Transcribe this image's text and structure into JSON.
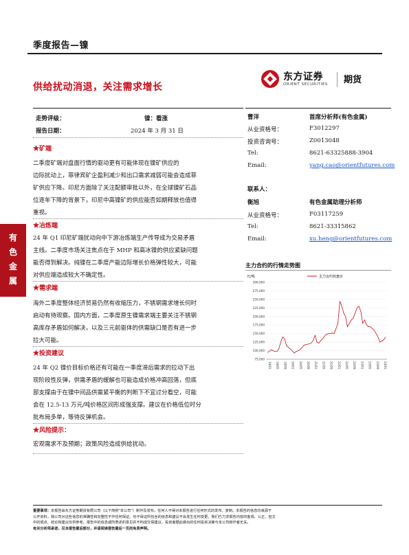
{
  "header": {
    "report_type": "季度报告—镍",
    "headline": "供给扰动消退，关注需求增长"
  },
  "logo": {
    "name_cn": "东方证券",
    "name_en": "ORIENT SECURITIES",
    "sub": "期货"
  },
  "side_tab": [
    "有",
    "色",
    "金",
    "属"
  ],
  "meta": {
    "trend_label": "走势评级：",
    "trend_value": "镍：看涨",
    "date_label": "报告日期：",
    "date_value": "2024 年 3 月 31 日"
  },
  "analysts": [
    {
      "name": "曹洋",
      "title": "首席分析师(有色金属)",
      "rows": [
        {
          "label": "从业资格号：",
          "value": "F3012297"
        },
        {
          "label": "投资咨询号：",
          "value": "Z0013048"
        },
        {
          "label": "Tel:",
          "value": "8621-63325888-3904"
        },
        {
          "label": "Email:",
          "value": "yang.cao@orientfutures.com",
          "link": true
        }
      ]
    },
    {
      "contact_label": "联系人：",
      "name": "衡旭",
      "title": "有色金属助理分析师",
      "rows": [
        {
          "label": "从业资格号：",
          "value": "F03117259"
        },
        {
          "label": "Tel:",
          "value": "8621-33315862"
        },
        {
          "label": "Email:",
          "value": "xu.heng@orientfutures.com",
          "link": true
        }
      ]
    }
  ],
  "sections": [
    {
      "title": "★矿端",
      "lines": [
        "二季度矿端对盘面行情的驱动更有可能体现在镍矿供应的",
        "边际扰动上，菲律宾矿企盈利减少和出口需求减弱可能会造成菲",
        "矿供应下降。印尼方面除了关注配额审批以外，在全球镍矿石品",
        "位逐年下降的背景下，印尼中高镍矿的供应能否如期释放也值得",
        "重视。"
      ]
    },
    {
      "title": "★冶炼端",
      "lines": [
        "24 年 Q1 印尼矿端扰动向中下游冶炼端生产传导成为交易矛盾",
        "主线。二季度市场关注焦点在于 MHP 和高冰镍的供应紧缺问题",
        "能否得到解决。纯镍在二季度产能边际增长价格弹性较大，可能",
        "对供应端造成较大不确定性。"
      ]
    },
    {
      "title": "★需求端",
      "lines": [
        "海外二季度整体经济贸易仍然有收缩压力，不锈钢需求增长何时",
        "启动有待观察。国内方面，二季度原生镍需求端主要关注不锈钢",
        "高库存矛盾如何解决，以及三元前驱体的供需缺口是否有进一步",
        "拉大可能。"
      ]
    },
    {
      "title": "★投资建议",
      "lines": [
        "24 年 Q2 镍价目标价格还有可能在一季度滞后需求的拉动下出",
        "现阶段性反弹，供需矛盾的缓解也可能造成价格冲高回落，但底",
        "部支撑由于在镍中间品供需紧平衡的判断下不宜过分看空，可能",
        "会在 12.5-13 万元/吨价格区间形成强支撑。建议在价格低位时分",
        "批布局多单，等待反弹机会。"
      ]
    },
    {
      "title": "★风险提示：",
      "lines": [
        "宏观需求不及预期；政策风险造成供给扰动。"
      ]
    }
  ],
  "chart_data": {
    "type": "line",
    "title": "主力合约的行情走势图",
    "legend": "主力合约收盘价",
    "legend_position": "top-center",
    "unit_label": "元/吨",
    "ylim": [
      75000,
      300000
    ],
    "yticks": [
      "300,000",
      "275,000",
      "250,000",
      "225,000",
      "200,000",
      "175,000",
      "150,000",
      "125,000",
      "100,000",
      "75,000"
    ],
    "xticks": [
      "19/01",
      "19/05",
      "19/09",
      "20/01",
      "20/05",
      "20/09",
      "21/01",
      "21/05",
      "21/09",
      "22/01",
      "22/05",
      "22/09",
      "23/01",
      "23/05",
      "23/09",
      "24/01"
    ],
    "series": [
      {
        "color": "#c8101c",
        "x": [
          "2019-01",
          "2019-02",
          "2019-03",
          "2019-04",
          "2019-05",
          "2019-06",
          "2019-07",
          "2019-08",
          "2019-09",
          "2019-10",
          "2019-11",
          "2019-12",
          "2020-01",
          "2020-02",
          "2020-03",
          "2020-04",
          "2020-05",
          "2020-06",
          "2020-07",
          "2020-08",
          "2020-09",
          "2020-10",
          "2020-11",
          "2020-12",
          "2021-01",
          "2021-02",
          "2021-03",
          "2021-04",
          "2021-05",
          "2021-06",
          "2021-07",
          "2021-08",
          "2021-09",
          "2021-10",
          "2021-11",
          "2021-12",
          "2022-01",
          "2022-02",
          "2022-03",
          "2022-04",
          "2022-05",
          "2022-06",
          "2022-07",
          "2022-08",
          "2022-09",
          "2022-10",
          "2022-11",
          "2022-12",
          "2023-01",
          "2023-02",
          "2023-03",
          "2023-04",
          "2023-05",
          "2023-06",
          "2023-07",
          "2023-08",
          "2023-09",
          "2023-10",
          "2023-11",
          "2023-12",
          "2024-01",
          "2024-02",
          "2024-03"
        ],
        "values": [
          95000,
          98000,
          103000,
          100000,
          98000,
          98000,
          105000,
          125000,
          140000,
          135000,
          115000,
          110000,
          105000,
          100000,
          93000,
          97000,
          100000,
          103000,
          108000,
          115000,
          118000,
          119000,
          120000,
          122000,
          130000,
          145000,
          125000,
          122000,
          130000,
          135000,
          143000,
          148000,
          150000,
          150000,
          152000,
          150000,
          165000,
          180000,
          245000,
          230000,
          210000,
          200000,
          170000,
          180000,
          190000,
          195000,
          210000,
          225000,
          230000,
          215000,
          180000,
          190000,
          175000,
          170000,
          170000,
          165000,
          160000,
          150000,
          140000,
          125000,
          128000,
          132000,
          140000
        ]
      }
    ]
  },
  "disclaimer": {
    "label": "重要事项：",
    "lines": [
      "本报告由东方证券期货有限公司（以下简称\"本公司\"）制作及发布。任何人不得对本报告进行任何形式的发布、复制。本报告的信息均来源于",
      "公开资料，我公司对这些信息的准确性和完整性不作任何保证。也不保证所包含的信息和建议不会发生任何变更。我们已力求报告内容的客观、公正，但文",
      "中的观点、结论和建议仅供参考。报告中的信息或所表述的意见并不构成交易建议，投资者据此做出的任何投资决策与本公司和作者无关。"
    ],
    "footer_bold": "有关分析师承诺，见本报告最后部分，并请阅读报告最后一页的免责声明。"
  }
}
